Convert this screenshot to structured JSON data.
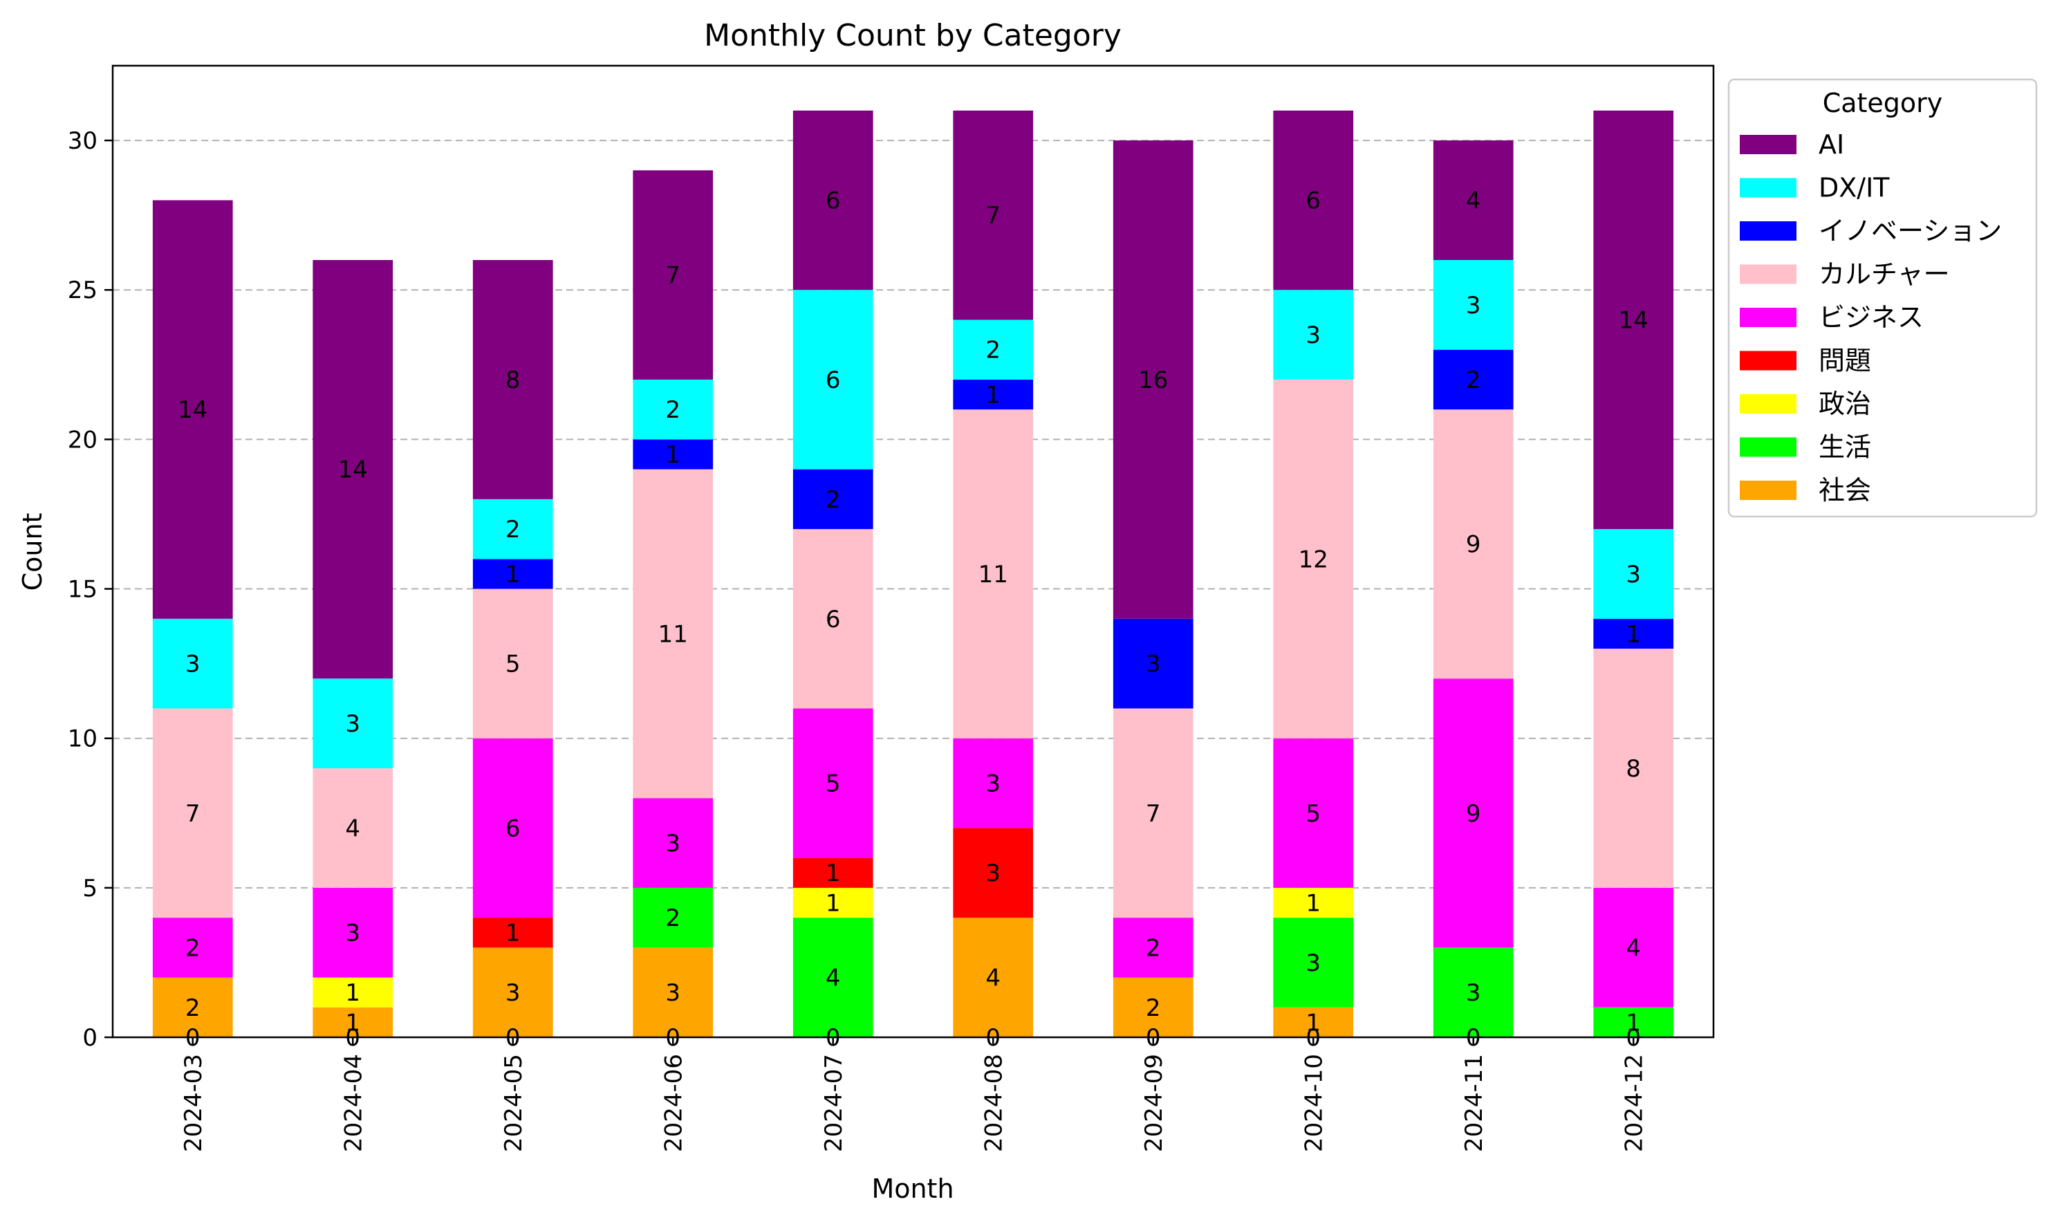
{
  "chart_data": {
    "type": "bar",
    "stacked": true,
    "title": "Monthly Count by Category",
    "xlabel": "Month",
    "ylabel": "Count",
    "ylim": [
      0,
      32.5
    ],
    "yticks": [
      0,
      5,
      10,
      15,
      20,
      25,
      30
    ],
    "grid": "y-dashed",
    "legend": {
      "title": "Category",
      "placement": "outside-top-right"
    },
    "categories": [
      "2024-03",
      "2024-04",
      "2024-05",
      "2024-06",
      "2024-07",
      "2024-08",
      "2024-09",
      "2024-10",
      "2024-11",
      "2024-12"
    ],
    "series": [
      {
        "name": "社会",
        "color": "#FFA500",
        "values": [
          2,
          1,
          3,
          3,
          0,
          4,
          2,
          1,
          0,
          0
        ]
      },
      {
        "name": "生活",
        "color": "#00FF00",
        "values": [
          0,
          0,
          0,
          2,
          4,
          0,
          0,
          3,
          3,
          1
        ]
      },
      {
        "name": "政治",
        "color": "#FFFF00",
        "values": [
          0,
          1,
          0,
          0,
          1,
          0,
          0,
          1,
          0,
          0
        ]
      },
      {
        "name": "問題",
        "color": "#FF0000",
        "values": [
          0,
          0,
          1,
          0,
          1,
          3,
          0,
          0,
          0,
          0
        ]
      },
      {
        "name": "ビジネス",
        "color": "#FF00FF",
        "values": [
          2,
          3,
          6,
          3,
          5,
          3,
          2,
          5,
          9,
          4
        ]
      },
      {
        "name": "カルチャー",
        "color": "#FFC0CB",
        "values": [
          7,
          4,
          5,
          11,
          6,
          11,
          7,
          12,
          9,
          8
        ]
      },
      {
        "name": "イノベーション",
        "color": "#0000FF",
        "values": [
          0,
          0,
          1,
          1,
          2,
          1,
          3,
          0,
          2,
          1
        ]
      },
      {
        "name": "DX/IT",
        "color": "#00FFFF",
        "values": [
          3,
          3,
          2,
          2,
          6,
          2,
          0,
          3,
          3,
          3
        ]
      },
      {
        "name": "AI",
        "color": "#800080",
        "values": [
          14,
          14,
          8,
          7,
          6,
          7,
          16,
          6,
          4,
          14
        ]
      }
    ],
    "legend_order": [
      "AI",
      "DX/IT",
      "イノベーション",
      "カルチャー",
      "ビジネス",
      "問題",
      "政治",
      "生活",
      "社会"
    ],
    "zero_labels": [
      {
        "category": "2024-03",
        "value": 0
      },
      {
        "category": "2024-04",
        "value": 0
      },
      {
        "category": "2024-05",
        "value": 0
      },
      {
        "category": "2024-06",
        "value": 0
      },
      {
        "category": "2024-07",
        "value": 0
      },
      {
        "category": "2024-08",
        "value": 0
      },
      {
        "category": "2024-09",
        "value": 0
      },
      {
        "category": "2024-10",
        "value": 0
      },
      {
        "category": "2024-11",
        "value": 0
      },
      {
        "category": "2024-12",
        "value": 0
      }
    ]
  }
}
